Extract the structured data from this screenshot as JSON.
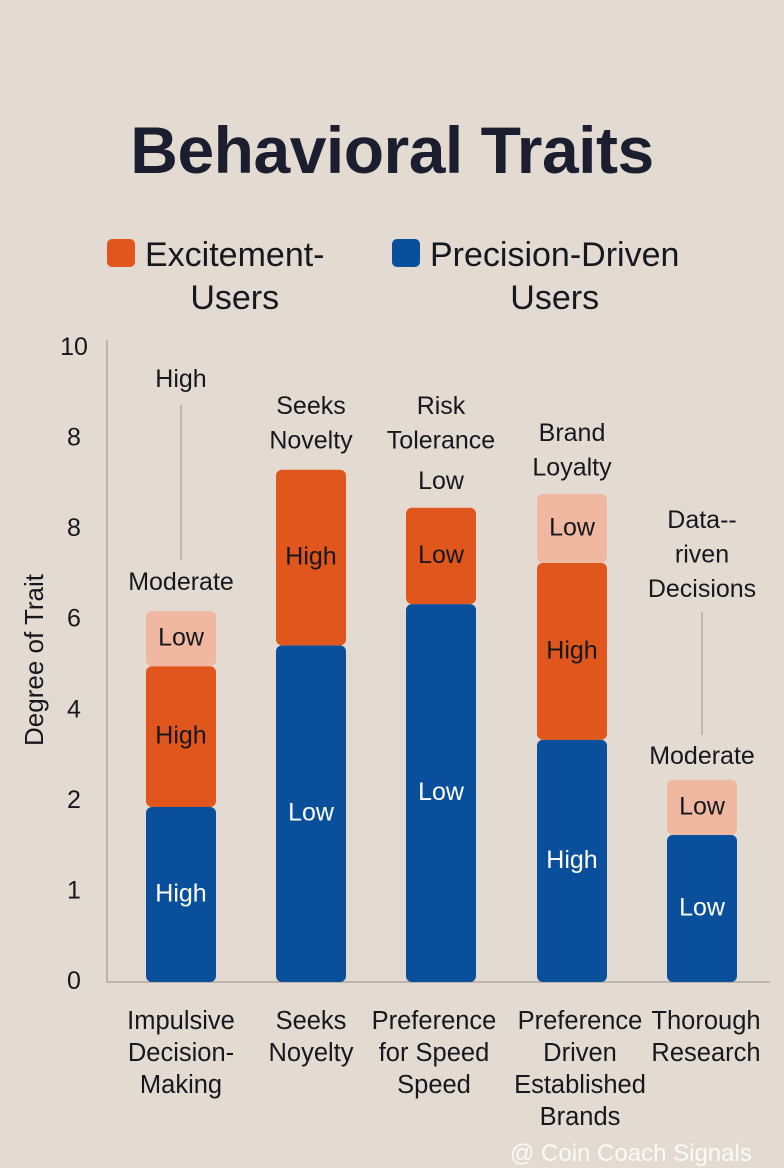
{
  "chart_data": {
    "type": "bar",
    "stacked": true,
    "title": "Behavioral Traits",
    "ylabel": "Degree of Trait",
    "xlabel": "",
    "ylim": [
      0,
      10
    ],
    "y_tick_labels": [
      "0",
      "1",
      "2",
      "4",
      "6",
      "8",
      "8",
      "10"
    ],
    "grid": false,
    "legend_placement": "top",
    "legend": [
      {
        "name": "Excitement-\nUsers",
        "color": "#e0561c"
      },
      {
        "name": "Precision-Driven\nUsers",
        "color": "#0a4f9c"
      }
    ],
    "colors": {
      "blue": "#0a4f9c",
      "orange": "#e0561c",
      "light": "#f0b8a0"
    },
    "categories": [
      "Impulsive\nDecision-\nMaking",
      "Seeks\nNoyelty",
      "Preference\nfor Speed\nSpeed",
      "Preference\nDriven\nEstablished\nBrands",
      "Thorough\nResearch"
    ],
    "bars": [
      {
        "segments": [
          {
            "from": 0,
            "to": 2.76,
            "color": "blue",
            "label": "High"
          },
          {
            "from": 2.76,
            "to": 4.98,
            "color": "orange",
            "label": "High"
          },
          {
            "from": 4.98,
            "to": 5.85,
            "color": "light",
            "label": "Low"
          }
        ],
        "annotations": [
          "High",
          "Moderate"
        ]
      },
      {
        "segments": [
          {
            "from": 0,
            "to": 5.31,
            "color": "blue",
            "label": "Low"
          },
          {
            "from": 5.31,
            "to": 8.08,
            "color": "orange",
            "label": "High"
          }
        ],
        "annotations": [
          "Seeks\nNovelty"
        ]
      },
      {
        "segments": [
          {
            "from": 0,
            "to": 5.96,
            "color": "blue",
            "label": "Low"
          },
          {
            "from": 5.96,
            "to": 7.48,
            "color": "orange",
            "label": "Low"
          }
        ],
        "annotations": [
          "Risk\nTolerance",
          "Low"
        ]
      },
      {
        "segments": [
          {
            "from": 0,
            "to": 3.82,
            "color": "blue",
            "label": "High"
          },
          {
            "from": 3.82,
            "to": 6.61,
            "color": "orange",
            "label": "High"
          },
          {
            "from": 6.61,
            "to": 7.7,
            "color": "light",
            "label": "Low"
          }
        ],
        "annotations": [
          "Brand\nLoyalty"
        ]
      },
      {
        "segments": [
          {
            "from": 0,
            "to": 2.32,
            "color": "blue",
            "label": "Low"
          },
          {
            "from": 2.32,
            "to": 3.19,
            "color": "light",
            "label": "Low"
          }
        ],
        "annotations": [
          "Data--\nriven\nDecisions",
          "Moderate"
        ]
      }
    ]
  },
  "watermark": "@ Coin Coach Signals"
}
